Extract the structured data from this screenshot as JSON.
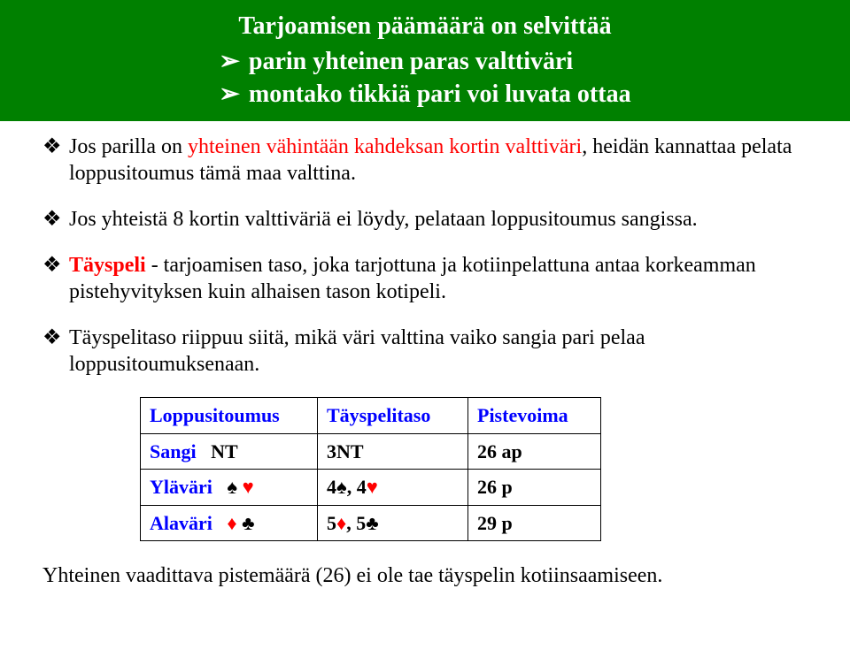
{
  "colors": {
    "header_bg": "#008000",
    "header_text": "#ffffff",
    "body_text": "#000000",
    "highlight_red": "#ff0000",
    "table_header_blue": "#0000ff",
    "suit_red": "#ff0000",
    "suit_black": "#000000"
  },
  "header": {
    "title": "Tarjoamisen päämäärä on selvittää",
    "bullets": [
      "parin yhteinen paras valttiväri",
      "montako tikkiä pari voi luvata ottaa"
    ]
  },
  "paras": {
    "p1_pre": "Jos parilla on ",
    "p1_hl": "yhteinen vähintään kahdeksan kortin valttiväri",
    "p1_post": ", heidän kannattaa pelata loppusitoumus tämä maa valttina.",
    "p2": "Jos yhteistä 8 kortin valttiväriä ei löydy, pelataan loppusitoumus sangissa.",
    "p3_term": "Täyspeli",
    "p3_rest": " - tarjoamisen taso, joka tarjottuna ja kotiinpelattuna antaa korkeamman pistehyvityksen kuin alhaisen tason kotipeli.",
    "p4": "Täyspelitaso riippuu siitä, mikä väri valttina vaiko sangia pari pelaa loppusitoumuksenaan."
  },
  "table": {
    "headers": {
      "contract": "Loppusitoumus",
      "game": "Täyspelitaso",
      "points": "Pistevoima"
    },
    "rows": [
      {
        "label": "Sangi",
        "suits": [
          {
            "g": "NT",
            "c": "black"
          }
        ],
        "game_parts": [
          {
            "t": "3NT",
            "c": "black"
          }
        ],
        "points": "26 ap"
      },
      {
        "label": "Yläväri",
        "suits": [
          {
            "g": "♠",
            "c": "black"
          },
          {
            "g": "♥",
            "c": "red"
          }
        ],
        "game_parts": [
          {
            "t": "4",
            "c": "black"
          },
          {
            "t": "♠",
            "c": "black"
          },
          {
            "t": ", 4",
            "c": "black"
          },
          {
            "t": "♥",
            "c": "red"
          }
        ],
        "points": "26 p"
      },
      {
        "label": "Alaväri",
        "suits": [
          {
            "g": "♦",
            "c": "red"
          },
          {
            "g": "♣",
            "c": "black"
          }
        ],
        "game_parts": [
          {
            "t": "5",
            "c": "black"
          },
          {
            "t": "♦",
            "c": "red"
          },
          {
            "t": ", 5",
            "c": "black"
          },
          {
            "t": "♣",
            "c": "black"
          }
        ],
        "points": "29 p"
      }
    ]
  },
  "footer": "Yhteinen vaadittava pistemäärä (26) ei ole tae täyspelin kotiinsaamiseen."
}
